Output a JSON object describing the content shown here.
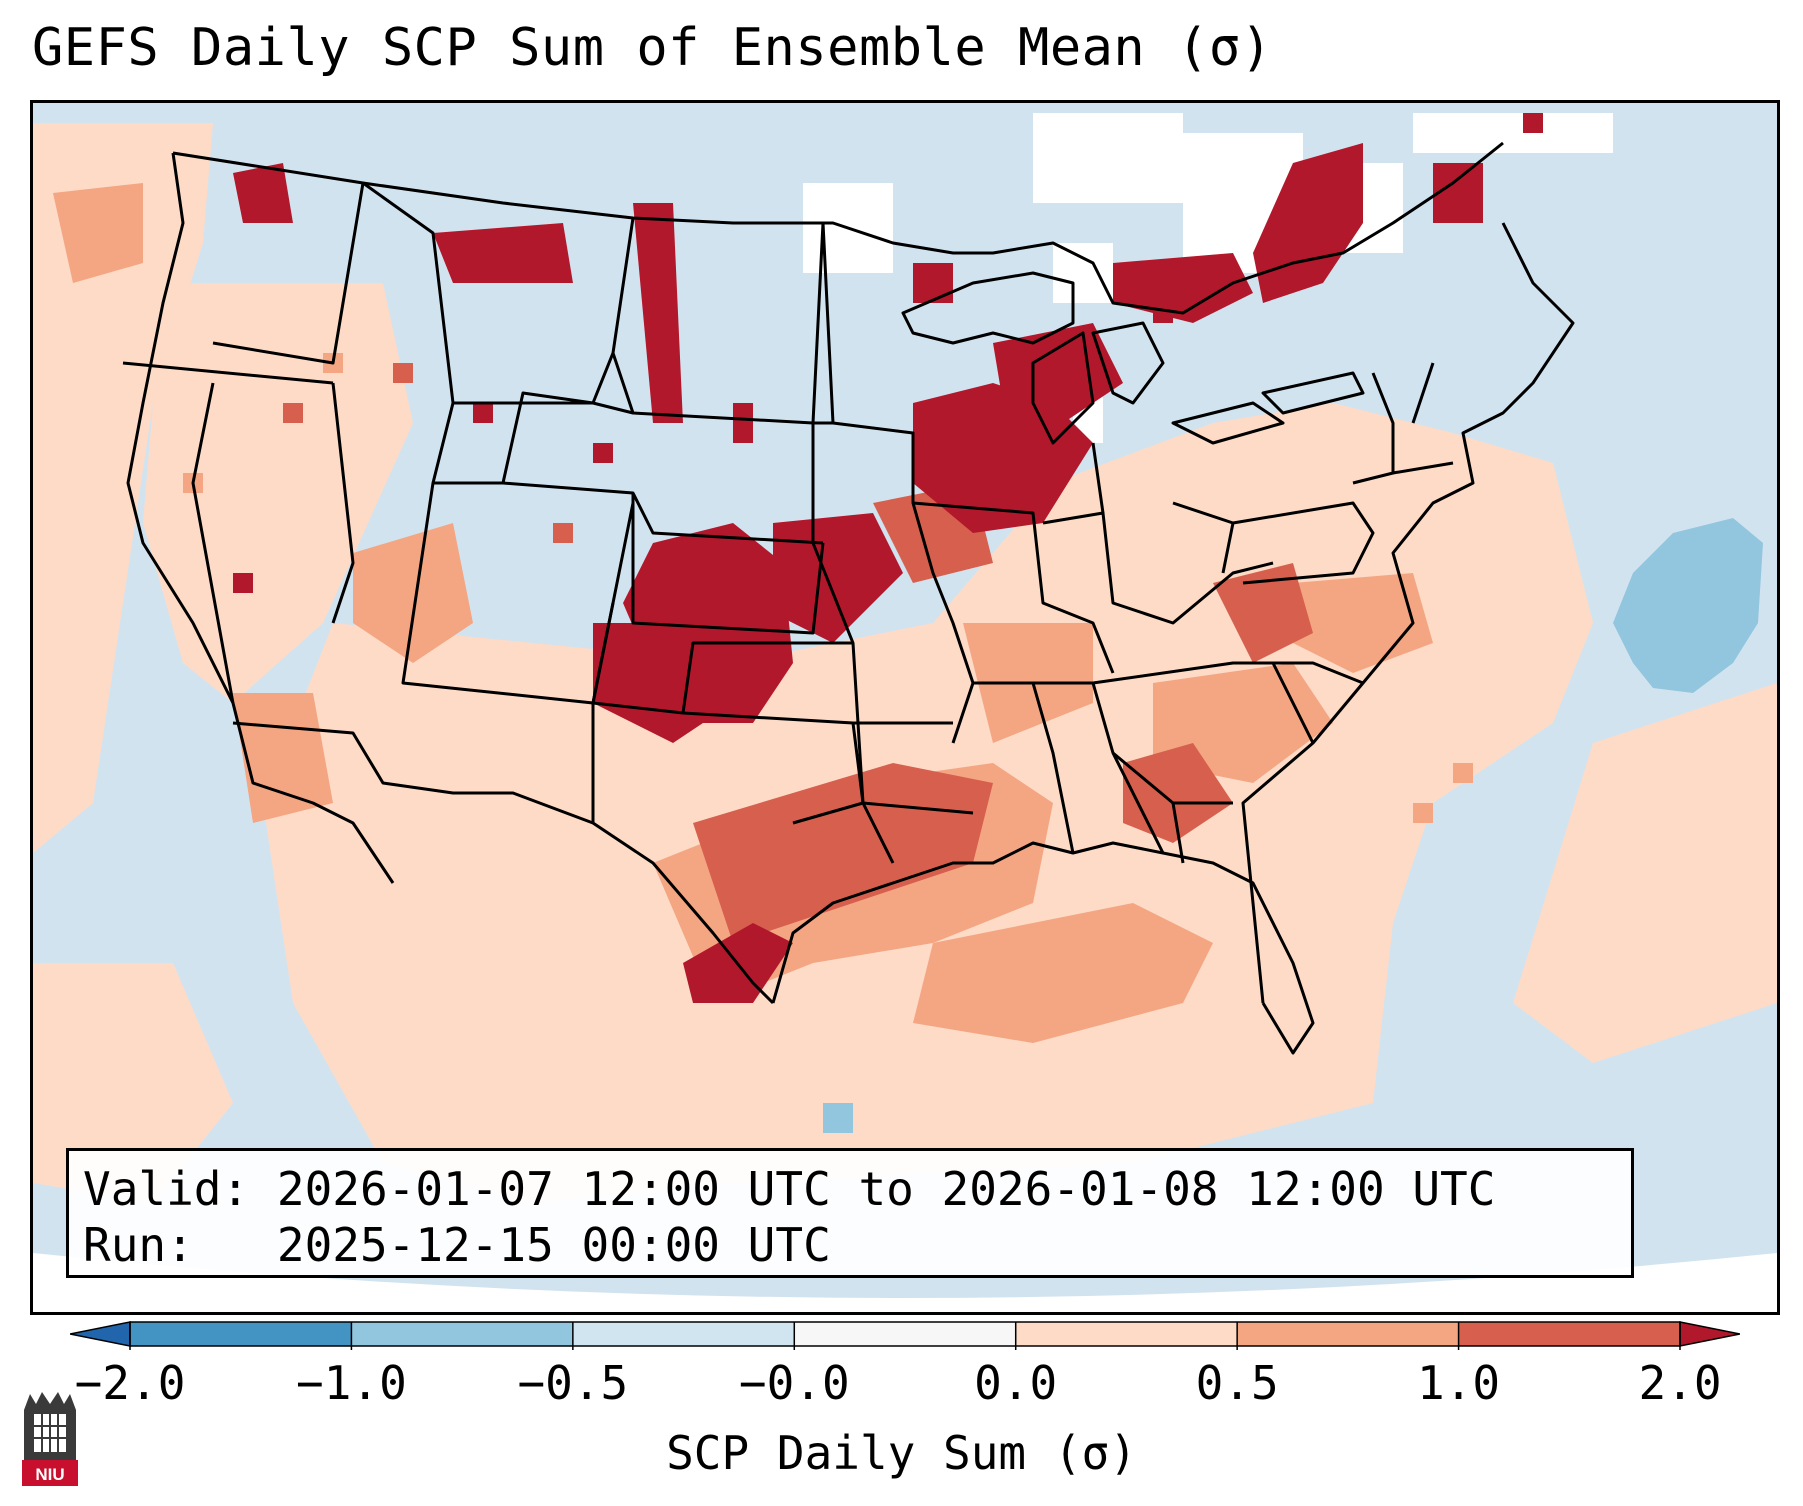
{
  "title": "GEFS Daily SCP Sum of Ensemble Mean (σ)",
  "info": {
    "valid_label": "Valid:",
    "valid_text": "2026-01-07 12:00 UTC to 2026-01-08 12:00 UTC",
    "run_label": "Run:",
    "run_text": "2025-12-15 00:00 UTC"
  },
  "colorbar": {
    "label": "SCP Daily Sum (σ)",
    "ticks": [
      "−2.0",
      "−1.0",
      "−0.5",
      "−0.0",
      "0.0",
      "0.5",
      "1.0",
      "2.0"
    ],
    "bins": [
      {
        "range": "-2.0 to -1.0",
        "color": "#4393c3"
      },
      {
        "range": "-1.0 to -0.5",
        "color": "#92c5de"
      },
      {
        "range": "-0.5 to -0.0",
        "color": "#d1e5f0"
      },
      {
        "range": "-0.0 to 0.0",
        "color": "#f7f7f7"
      },
      {
        "range": "0.0 to 0.5",
        "color": "#fddbc7"
      },
      {
        "range": "0.5 to 1.0",
        "color": "#f4a582"
      },
      {
        "range": "1.0 to 2.0",
        "color": "#d6604d"
      }
    ],
    "under_color": "#2166ac",
    "over_color": "#b2182b"
  },
  "map": {
    "region": "Contiguous United States",
    "background_color": "#d2e3f0",
    "features": [
      "High SCP (>1.0σ) over Oklahoma, Kansas, Iowa, Wisconsin and southern Ontario/Quebec",
      "Positive anomalies over central and east Texas and the Gulf coast",
      "Negative anomaly region over the western Atlantic"
    ]
  },
  "logo": {
    "text": "NIU"
  }
}
